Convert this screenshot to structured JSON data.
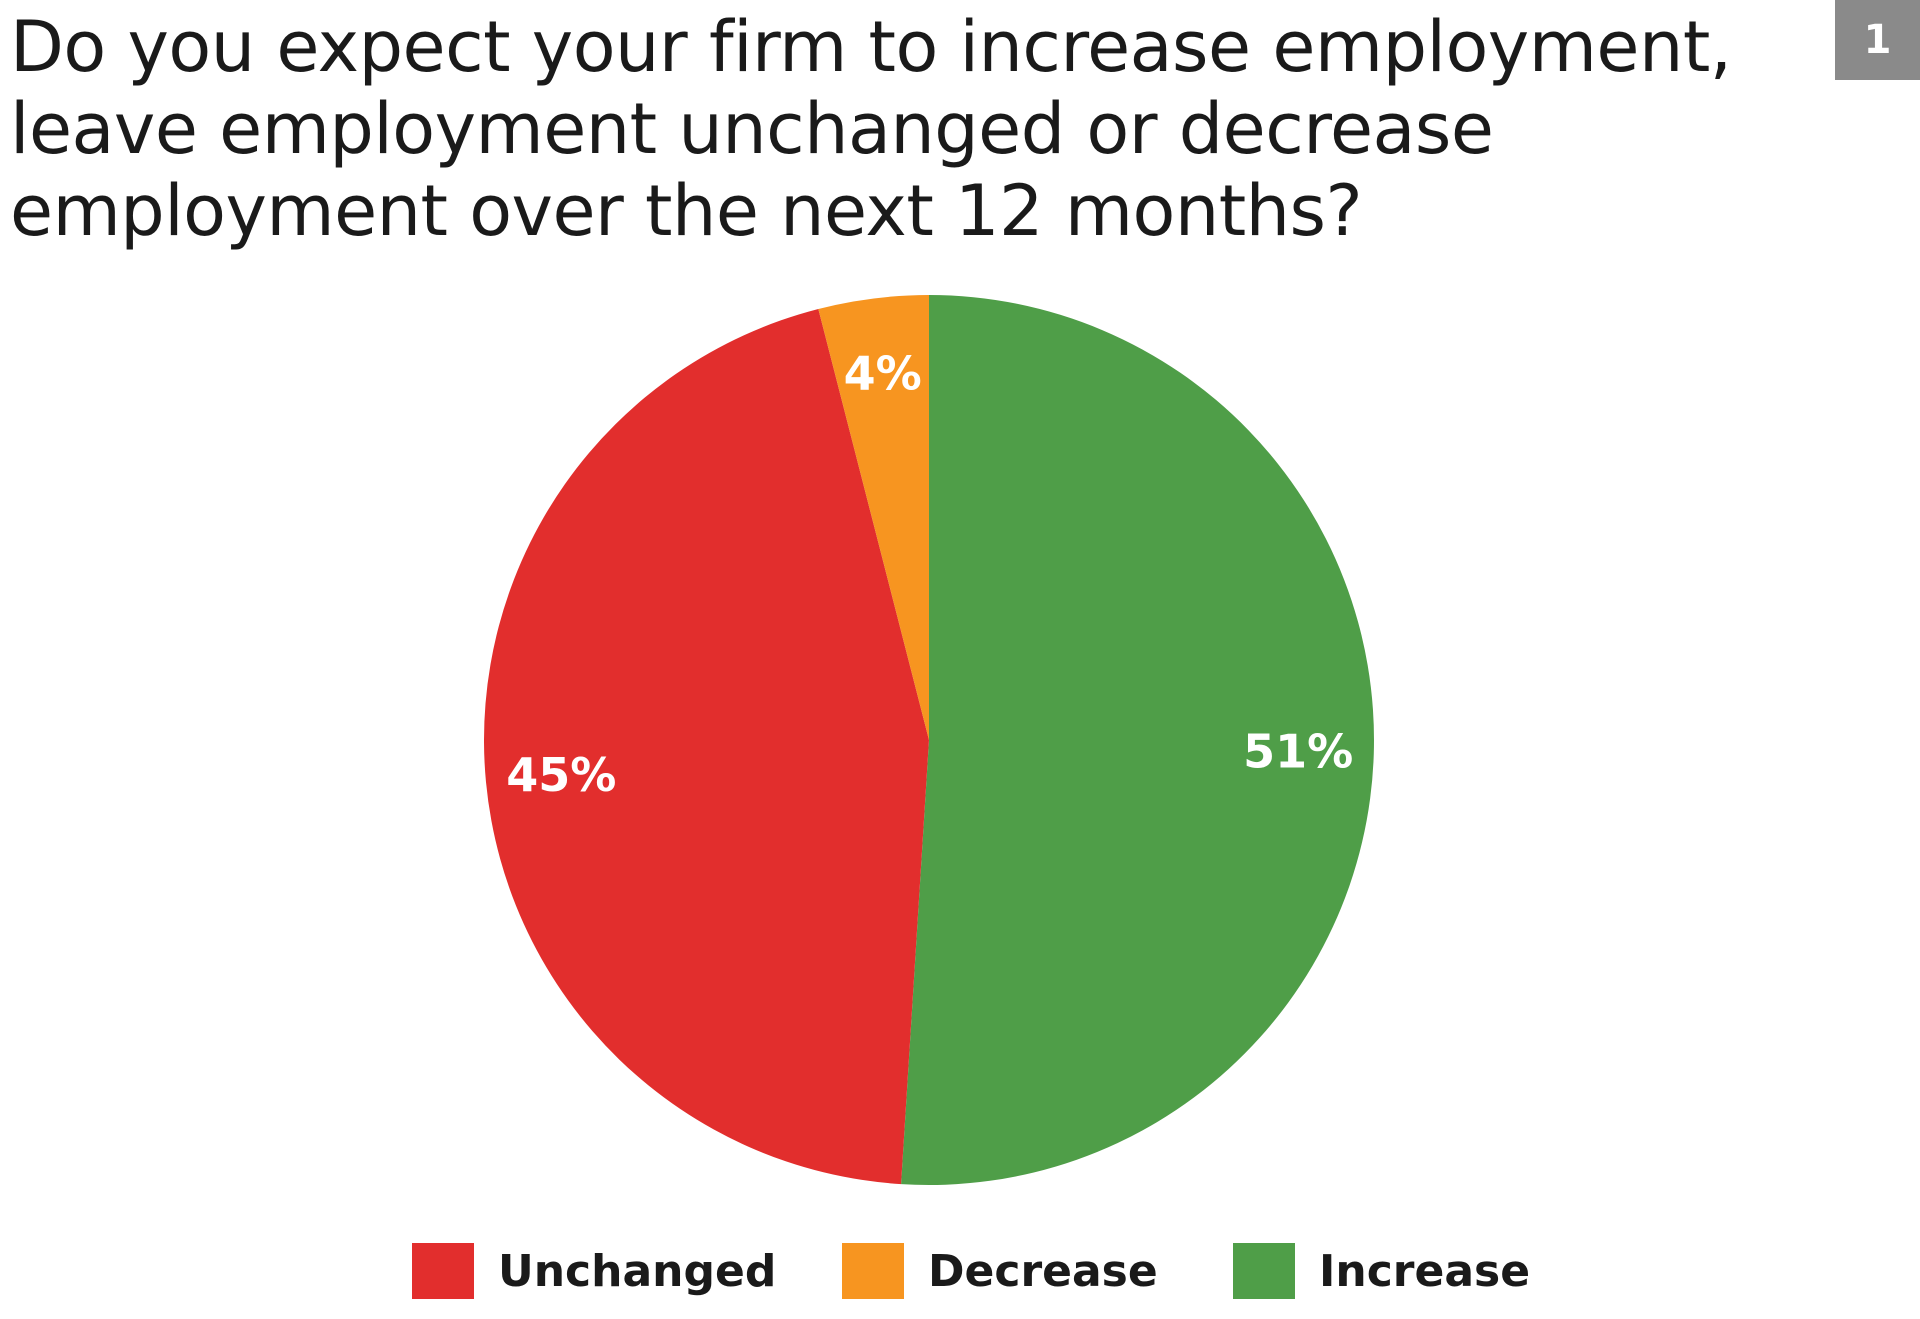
{
  "title_lines": [
    "Do you expect your firm to increase employment,",
    "leave employment unchanged or decrease",
    "employment over the next 12 months?"
  ],
  "page_number": "1",
  "chart_data": {
    "type": "pie",
    "title": "Do you expect your firm to increase employment, leave employment unchanged or decrease employment over the next 12 months?",
    "slices": [
      {
        "name": "Increase",
        "value": 51,
        "label": "51%",
        "color": "#4f9e48"
      },
      {
        "name": "Unchanged",
        "value": 45,
        "label": "45%",
        "color": "#e22e2d"
      },
      {
        "name": "Decrease",
        "value": 4,
        "label": "4%",
        "color": "#f79520"
      }
    ],
    "legend_placement": "bottom",
    "legend": [
      {
        "name": "Unchanged",
        "color": "#e22e2d"
      },
      {
        "name": "Decrease",
        "color": "#f79520"
      },
      {
        "name": "Increase",
        "color": "#4f9e48"
      }
    ]
  }
}
